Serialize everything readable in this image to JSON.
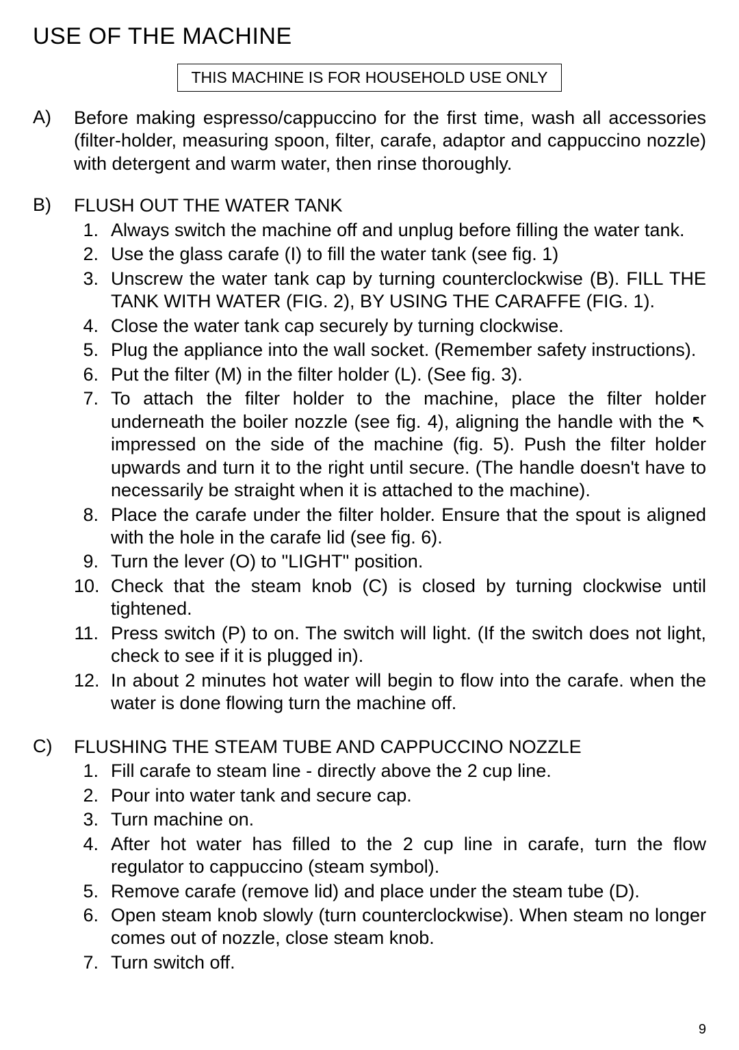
{
  "page": {
    "title": "USE OF THE MACHINE",
    "notice": "THIS MACHINE IS FOR HOUSEHOLD USE ONLY",
    "page_number": "9"
  },
  "section_a": {
    "letter": "A)",
    "text": "Before making espresso/cappuccino for the first time, wash all accessories (filter-holder, measuring spoon, filter, carafe, adaptor and cappuccino nozzle) with detergent and warm water, then rinse thoroughly."
  },
  "section_b": {
    "letter": "B)",
    "heading": "FLUSH OUT THE WATER TANK",
    "steps": [
      "Always switch the machine off and unplug before filling the water tank.",
      "Use the glass carafe (I) to fill the water tank (see fig. 1)",
      "Unscrew the water tank cap  by turning counterclockwise (B). FILL THE TANK WITH WATER (FIG. 2), BY USING THE CARAFFE (FIG. 1).",
      "Close the water tank cap securely by turning clockwise.",
      "Plug the appliance into the wall socket. (Remember safety instructions).",
      "Put the filter (M) in the filter holder (L). (See fig. 3).",
      "To attach the filter holder to the machine, place the filter holder underneath the boiler nozzle (see fig. 4), aligning the handle with the  ↖   impressed on the side of the machine (fig. 5). Push the filter holder upwards and turn it to the right until secure. (The handle doesn't have to necessarily be straight when it is attached to the machine).",
      "Place the carafe under the filter holder. Ensure that the spout is aligned with the hole in the carafe lid (see fig. 6).",
      "Turn the lever  (O) to \"LIGHT\" position.",
      "Check that the steam knob (C) is closed by turning clockwise until tightened.",
      "Press switch (P) to on. The switch will light. (If the switch does not light, check to see if it is plugged in).",
      "In about 2 minutes hot water will begin to flow into the carafe. when the water is done flowing turn the machine off."
    ]
  },
  "section_c": {
    "letter": "C)",
    "heading": "FLUSHING THE STEAM TUBE  AND CAPPUCCINO NOZZLE",
    "steps": [
      "Fill carafe to steam line - directly above the 2 cup line.",
      "Pour into water tank and secure cap.",
      "Turn machine on.",
      "After hot water has filled to the 2 cup line in carafe, turn the flow regulator to cappuccino (steam symbol).",
      "Remove carafe (remove lid) and place under the steam tube (D).",
      "Open steam knob slowly (turn counterclockwise). When steam no longer comes out of nozzle, close steam knob.",
      "Turn switch off."
    ]
  }
}
